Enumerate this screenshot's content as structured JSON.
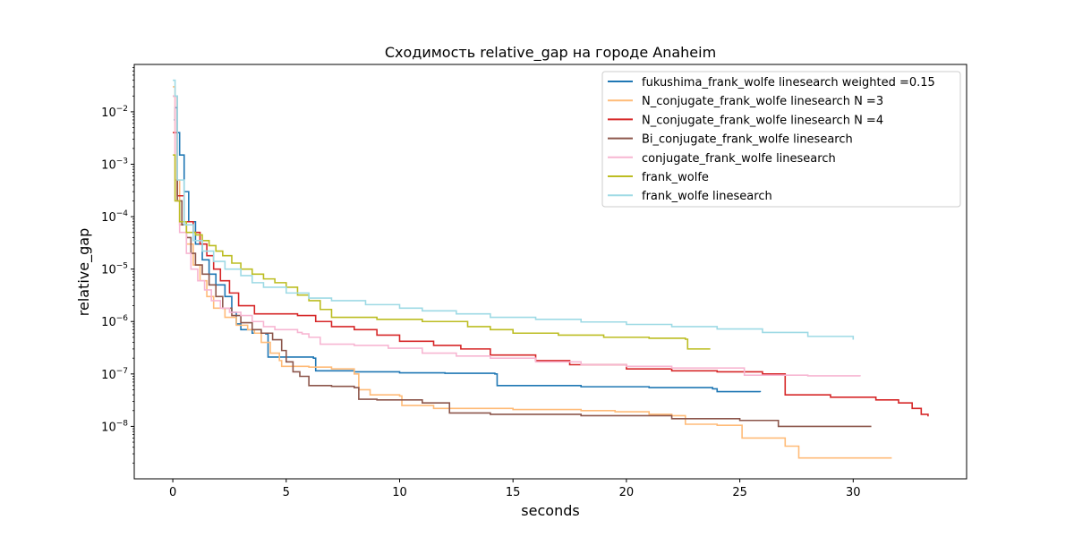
{
  "chart_data": {
    "type": "line",
    "title": "Сходимость relative_gap на городе Anaheim",
    "xlabel": "seconds",
    "ylabel": "relative_gap",
    "xlim": [
      -1.7,
      35.0
    ],
    "ylim": [
      1e-09,
      0.08
    ],
    "yscale": "log",
    "grid": false,
    "legend_position": "upper-right",
    "x_ticks": [
      {
        "value": 0,
        "label": "0"
      },
      {
        "value": 5,
        "label": "5"
      },
      {
        "value": 10,
        "label": "10"
      },
      {
        "value": 15,
        "label": "15"
      },
      {
        "value": 20,
        "label": "20"
      },
      {
        "value": 25,
        "label": "25"
      },
      {
        "value": 30,
        "label": "30"
      }
    ],
    "y_ticks": [
      {
        "value": 1e-08,
        "base": "10",
        "exp": "−8"
      },
      {
        "value": 1e-07,
        "base": "10",
        "exp": "−7"
      },
      {
        "value": 1e-06,
        "base": "10",
        "exp": "−6"
      },
      {
        "value": 1e-05,
        "base": "10",
        "exp": "−5"
      },
      {
        "value": 0.0001,
        "base": "10",
        "exp": "−4"
      },
      {
        "value": 0.001,
        "base": "10",
        "exp": "−3"
      },
      {
        "value": 0.01,
        "base": "10",
        "exp": "−2"
      }
    ],
    "series": [
      {
        "name": "fukushima_frank_wolfe linesearch weighted =0.15",
        "color": "#1f77b4",
        "steps": true,
        "points": [
          [
            0.05,
            0.007
          ],
          [
            0.1,
            0.012
          ],
          [
            0.2,
            0.004
          ],
          [
            0.3,
            0.0015
          ],
          [
            0.5,
            0.0003
          ],
          [
            0.7,
            8e-05
          ],
          [
            1.0,
            3e-05
          ],
          [
            1.3,
            1.5e-05
          ],
          [
            1.6,
            8e-06
          ],
          [
            1.9,
            5e-06
          ],
          [
            2.3,
            3e-06
          ],
          [
            2.6,
            1.5e-06
          ],
          [
            2.8,
            9e-07
          ],
          [
            3.0,
            7e-07
          ],
          [
            3.5,
            6e-07
          ],
          [
            4.1,
            5.8e-07
          ],
          [
            4.2,
            2.1e-07
          ],
          [
            5.0,
            2.1e-07
          ],
          [
            6.2,
            2e-07
          ],
          [
            6.3,
            1.15e-07
          ],
          [
            8.0,
            1.1e-07
          ],
          [
            10.0,
            1.05e-07
          ],
          [
            12.0,
            1.03e-07
          ],
          [
            14.2,
            1e-07
          ],
          [
            14.3,
            6e-08
          ],
          [
            18.0,
            5.7e-08
          ],
          [
            21.0,
            5.5e-08
          ],
          [
            23.8,
            5.2e-08
          ],
          [
            24.0,
            4.6e-08
          ],
          [
            25.9,
            4.5e-08
          ]
        ]
      },
      {
        "name": "N_conjugate_frank_wolfe linesearch N =3",
        "color": "#ffbb78",
        "steps": true,
        "points": [
          [
            0.0,
            0.03
          ],
          [
            0.1,
            0.0005
          ],
          [
            0.3,
            7e-05
          ],
          [
            0.6,
            3e-05
          ],
          [
            0.9,
            1.2e-05
          ],
          [
            1.2,
            6e-06
          ],
          [
            1.5,
            3e-06
          ],
          [
            1.8,
            1.8e-06
          ],
          [
            2.3,
            1.2e-06
          ],
          [
            2.8,
            8.5e-07
          ],
          [
            3.3,
            7e-07
          ],
          [
            3.6,
            6e-07
          ],
          [
            3.9,
            4e-07
          ],
          [
            4.3,
            2.5e-07
          ],
          [
            4.7,
            1.8e-07
          ],
          [
            4.8,
            1.4e-07
          ],
          [
            6.0,
            1.35e-07
          ],
          [
            7.0,
            1.25e-07
          ],
          [
            8.0,
            1e-07
          ],
          [
            8.2,
            5e-08
          ],
          [
            8.7,
            4e-08
          ],
          [
            10.0,
            3.8e-08
          ],
          [
            10.1,
            2.5e-08
          ],
          [
            11.5,
            2.2e-08
          ],
          [
            15.0,
            2.1e-08
          ],
          [
            18.0,
            2e-08
          ],
          [
            19.5,
            1.9e-08
          ],
          [
            21.0,
            1.7e-08
          ],
          [
            22.0,
            1.6e-08
          ],
          [
            22.6,
            1.1e-08
          ],
          [
            24.0,
            1.05e-08
          ],
          [
            25.1,
            6e-09
          ],
          [
            26.0,
            6e-09
          ],
          [
            27.0,
            4.2e-09
          ],
          [
            27.6,
            2.5e-09
          ],
          [
            31.7,
            2.5e-09
          ]
        ]
      },
      {
        "name": "N_conjugate_frank_wolfe linesearch N =4",
        "color": "#d62728",
        "steps": true,
        "points": [
          [
            0.0,
            0.004
          ],
          [
            0.2,
            0.00025
          ],
          [
            0.5,
            8e-05
          ],
          [
            0.9,
            5e-05
          ],
          [
            1.2,
            3e-05
          ],
          [
            1.5,
            1.8e-05
          ],
          [
            1.8,
            1e-05
          ],
          [
            2.1,
            6e-06
          ],
          [
            2.5,
            3.5e-06
          ],
          [
            2.9,
            2e-06
          ],
          [
            3.6,
            1.4e-06
          ],
          [
            4.3,
            1.4e-06
          ],
          [
            5.5,
            1.3e-06
          ],
          [
            6.3,
            1e-06
          ],
          [
            7.0,
            8e-07
          ],
          [
            8.0,
            7e-07
          ],
          [
            9.0,
            5.5e-07
          ],
          [
            10.0,
            4.2e-07
          ],
          [
            11.5,
            3.5e-07
          ],
          [
            12.7,
            3e-07
          ],
          [
            14.0,
            2.3e-07
          ],
          [
            16.0,
            1.8e-07
          ],
          [
            17.5,
            1.5e-07
          ],
          [
            20.0,
            1.25e-07
          ],
          [
            22.0,
            1.15e-07
          ],
          [
            24.0,
            1.1e-07
          ],
          [
            26.0,
            1e-07
          ],
          [
            26.9,
            1e-07
          ],
          [
            27.0,
            4e-08
          ],
          [
            29.0,
            3.6e-08
          ],
          [
            31.0,
            3.2e-08
          ],
          [
            32.0,
            2.8e-08
          ],
          [
            32.6,
            2.2e-08
          ],
          [
            33.0,
            1.7e-08
          ],
          [
            33.3,
            1.55e-08
          ]
        ]
      },
      {
        "name": "Bi_conjugate_frank_wolfe linesearch",
        "color": "#8c564b",
        "steps": true,
        "points": [
          [
            0.0,
            0.02
          ],
          [
            0.2,
            0.0002
          ],
          [
            0.4,
            7e-05
          ],
          [
            0.6,
            4e-05
          ],
          [
            0.8,
            2e-05
          ],
          [
            1.0,
            1.2e-05
          ],
          [
            1.3,
            8e-06
          ],
          [
            1.6,
            5e-06
          ],
          [
            1.9,
            3e-06
          ],
          [
            2.2,
            1.8e-06
          ],
          [
            2.6,
            1.3e-06
          ],
          [
            3.0,
            9.5e-07
          ],
          [
            3.5,
            7e-07
          ],
          [
            3.9,
            6e-07
          ],
          [
            4.4,
            4.5e-07
          ],
          [
            4.8,
            2.8e-07
          ],
          [
            5.0,
            1.7e-07
          ],
          [
            5.3,
            1.1e-07
          ],
          [
            5.6,
            9e-08
          ],
          [
            6.0,
            6e-08
          ],
          [
            7.0,
            5.8e-08
          ],
          [
            8.0,
            5.5e-08
          ],
          [
            8.2,
            3.3e-08
          ],
          [
            9.0,
            3.2e-08
          ],
          [
            11.0,
            2.8e-08
          ],
          [
            12.2,
            1.8e-08
          ],
          [
            14.0,
            1.7e-08
          ],
          [
            18.0,
            1.6e-08
          ],
          [
            22.0,
            1.4e-08
          ],
          [
            25.0,
            1.3e-08
          ],
          [
            26.6,
            1.3e-08
          ],
          [
            26.7,
            1e-08
          ],
          [
            28.0,
            1e-08
          ],
          [
            30.8,
            1e-08
          ]
        ]
      },
      {
        "name": "conjugate_frank_wolfe linesearch",
        "color": "#f7b6d2",
        "steps": true,
        "points": [
          [
            0.0,
            0.02
          ],
          [
            0.1,
            0.0002
          ],
          [
            0.3,
            5e-05
          ],
          [
            0.6,
            2e-05
          ],
          [
            0.8,
            1e-05
          ],
          [
            1.1,
            6e-06
          ],
          [
            1.4,
            4e-06
          ],
          [
            1.7,
            2.5e-06
          ],
          [
            2.1,
            1.8e-06
          ],
          [
            2.5,
            1.5e-06
          ],
          [
            3.0,
            1.3e-06
          ],
          [
            3.5,
            1e-06
          ],
          [
            4.0,
            8e-07
          ],
          [
            4.5,
            7e-07
          ],
          [
            5.5,
            6.2e-07
          ],
          [
            5.7,
            5.8e-07
          ],
          [
            6.0,
            5e-07
          ],
          [
            6.5,
            3.7e-07
          ],
          [
            8.0,
            3.5e-07
          ],
          [
            9.5,
            3.1e-07
          ],
          [
            11.0,
            2.5e-07
          ],
          [
            12.5,
            2.2e-07
          ],
          [
            14.0,
            2e-07
          ],
          [
            16.0,
            1.7e-07
          ],
          [
            18.0,
            1.5e-07
          ],
          [
            20.0,
            1.4e-07
          ],
          [
            22.0,
            1.3e-07
          ],
          [
            25.1,
            1.3e-07
          ],
          [
            25.2,
            9.5e-08
          ],
          [
            28.0,
            9.2e-08
          ],
          [
            30.3,
            9e-08
          ]
        ]
      },
      {
        "name": "frank_wolfe",
        "color": "#bcbd22",
        "steps": true,
        "points": [
          [
            0.0,
            0.0015
          ],
          [
            0.1,
            0.0002
          ],
          [
            0.3,
            8e-05
          ],
          [
            0.6,
            5e-05
          ],
          [
            1.0,
            4.5e-05
          ],
          [
            1.3,
            3.5e-05
          ],
          [
            1.6,
            2.8e-05
          ],
          [
            1.9,
            2.2e-05
          ],
          [
            2.2,
            1.8e-05
          ],
          [
            2.6,
            1.3e-05
          ],
          [
            3.0,
            1e-05
          ],
          [
            3.5,
            8e-06
          ],
          [
            4.0,
            6.5e-06
          ],
          [
            4.5,
            5.5e-06
          ],
          [
            5.0,
            4.5e-06
          ],
          [
            5.5,
            3.2e-06
          ],
          [
            6.0,
            2.5e-06
          ],
          [
            6.5,
            1.7e-06
          ],
          [
            7.0,
            1.2e-06
          ],
          [
            9.0,
            1.1e-06
          ],
          [
            11.0,
            1e-06
          ],
          [
            13.0,
            8e-07
          ],
          [
            14.0,
            7e-07
          ],
          [
            15.0,
            6e-07
          ],
          [
            17.0,
            5.5e-07
          ],
          [
            19.0,
            5e-07
          ],
          [
            21.0,
            4.8e-07
          ],
          [
            22.6,
            4.6e-07
          ],
          [
            22.7,
            3e-07
          ],
          [
            23.7,
            3e-07
          ]
        ]
      },
      {
        "name": "frank_wolfe linesearch",
        "color": "#9edae5",
        "steps": true,
        "points": [
          [
            0.0,
            0.04
          ],
          [
            0.1,
            0.02
          ],
          [
            0.2,
            0.0005
          ],
          [
            0.5,
            7e-05
          ],
          [
            0.9,
            3.5e-05
          ],
          [
            1.3,
            2.2e-05
          ],
          [
            1.8,
            1.4e-05
          ],
          [
            2.3,
            1e-05
          ],
          [
            3.0,
            7.5e-06
          ],
          [
            3.5,
            5.5e-06
          ],
          [
            4.0,
            4.5e-06
          ],
          [
            5.0,
            3.5e-06
          ],
          [
            6.0,
            2.8e-06
          ],
          [
            7.0,
            2.5e-06
          ],
          [
            8.5,
            2.1e-06
          ],
          [
            10.0,
            1.8e-06
          ],
          [
            11.0,
            1.6e-06
          ],
          [
            12.5,
            1.4e-06
          ],
          [
            14.0,
            1.2e-06
          ],
          [
            16.0,
            1.1e-06
          ],
          [
            18.0,
            9.8e-07
          ],
          [
            20.0,
            8.8e-07
          ],
          [
            22.0,
            8e-07
          ],
          [
            24.0,
            7.2e-07
          ],
          [
            26.0,
            6.2e-07
          ],
          [
            28.0,
            5.2e-07
          ],
          [
            30.0,
            4.5e-07
          ]
        ]
      }
    ]
  }
}
